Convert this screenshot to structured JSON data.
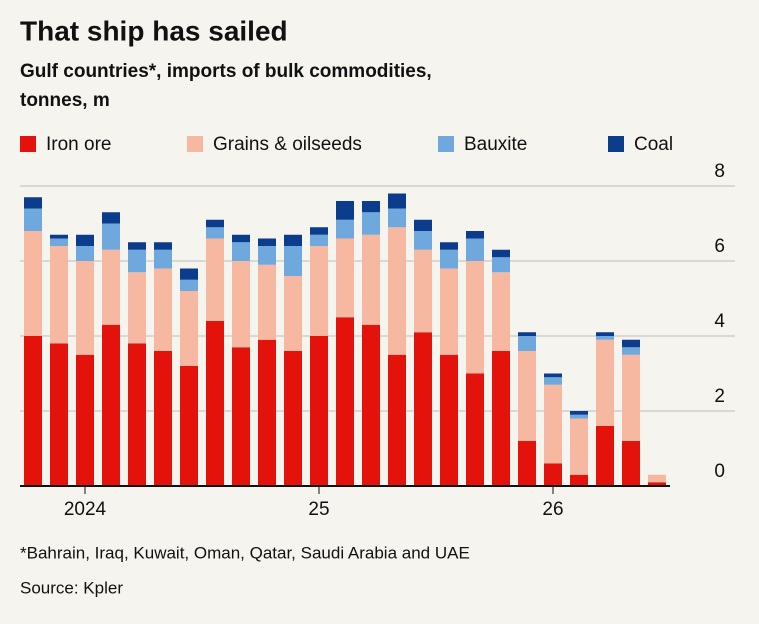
{
  "chart_data": {
    "type": "stacked_bar",
    "title": "That ship has sailed",
    "subtitle": [
      "Gulf countries*, imports of bulk commodities,",
      "tonnes, m"
    ],
    "footnote": "*Bahrain, Iraq, Kuwait, Oman, Qatar, Saudi Arabia and UAE",
    "source": "Source: Kpler",
    "categories": [
      null,
      null,
      "2024",
      null,
      null,
      null,
      null,
      null,
      null,
      null,
      null,
      "25",
      null,
      null,
      null,
      null,
      null,
      null,
      null,
      null,
      "26",
      null,
      null,
      null,
      null
    ],
    "series": [
      {
        "name": "Iron ore",
        "color": "#e3120b",
        "values": [
          4.0,
          3.8,
          3.5,
          4.3,
          3.8,
          3.6,
          3.2,
          4.4,
          3.7,
          3.9,
          3.6,
          4.0,
          4.5,
          4.3,
          3.5,
          4.1,
          3.5,
          3.0,
          3.6,
          1.2,
          0.6,
          0.3,
          1.6,
          1.2,
          0.1
        ]
      },
      {
        "name": "Grains & oilseeds",
        "color": "#f6b8a0",
        "values": [
          2.8,
          2.6,
          2.5,
          2.0,
          1.9,
          2.2,
          2.0,
          2.2,
          2.3,
          2.0,
          2.0,
          2.4,
          2.1,
          2.4,
          3.4,
          2.2,
          2.3,
          3.0,
          2.1,
          2.4,
          2.1,
          1.5,
          2.3,
          2.3,
          0.2
        ]
      },
      {
        "name": "Bauxite",
        "color": "#6fa8dc",
        "values": [
          0.6,
          0.2,
          0.4,
          0.7,
          0.6,
          0.5,
          0.3,
          0.3,
          0.5,
          0.5,
          0.8,
          0.3,
          0.5,
          0.6,
          0.5,
          0.5,
          0.5,
          0.6,
          0.4,
          0.4,
          0.2,
          0.1,
          0.1,
          0.2,
          0
        ]
      },
      {
        "name": "Coal",
        "color": "#0c3c8c",
        "values": [
          0.3,
          0.1,
          0.3,
          0.3,
          0.2,
          0.2,
          0.3,
          0.2,
          0.2,
          0.2,
          0.3,
          0.2,
          0.5,
          0.3,
          0.4,
          0.3,
          0.2,
          0.2,
          0.2,
          0.1,
          0.1,
          0.1,
          0.1,
          0.2,
          0
        ]
      }
    ],
    "ylim": [
      0,
      8
    ],
    "yticks": [
      0,
      2,
      4,
      6,
      8
    ],
    "grid": true
  }
}
